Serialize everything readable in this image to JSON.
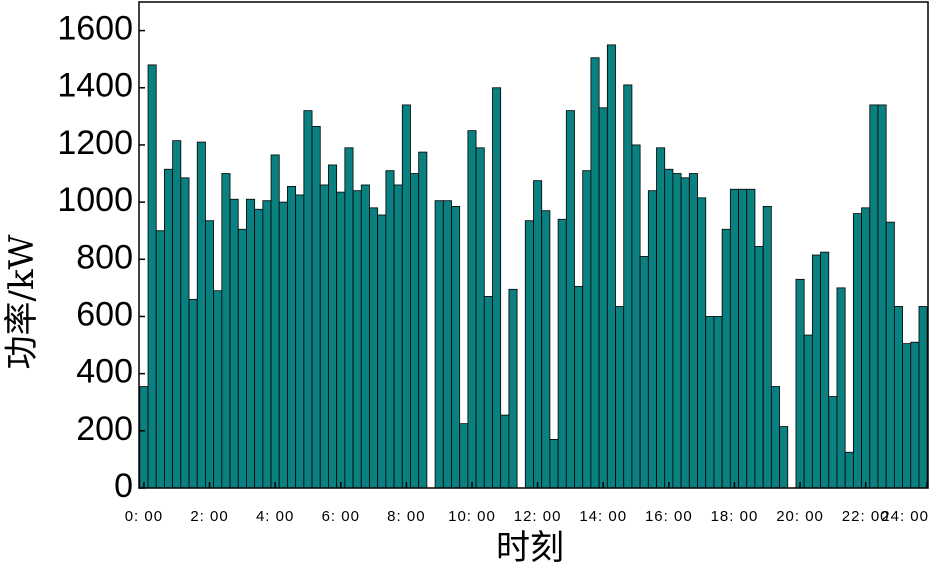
{
  "chart_data": {
    "type": "bar",
    "ylabel": "功率/kW",
    "xlabel": "时刻",
    "x": [
      0,
      0.25,
      0.5,
      0.75,
      1,
      1.25,
      1.5,
      1.75,
      2,
      2.25,
      2.5,
      2.75,
      3,
      3.25,
      3.5,
      3.75,
      4,
      4.25,
      4.5,
      4.75,
      5,
      5.25,
      5.5,
      5.75,
      6,
      6.25,
      6.5,
      6.75,
      7,
      7.25,
      7.5,
      7.75,
      8,
      8.25,
      8.5,
      8.75,
      9,
      9.25,
      9.5,
      9.75,
      10,
      10.25,
      10.5,
      10.75,
      11,
      11.25,
      11.5,
      11.75,
      12,
      12.25,
      12.5,
      12.75,
      13,
      13.25,
      13.5,
      13.75,
      14,
      14.25,
      14.5,
      14.75,
      15,
      15.25,
      15.5,
      15.75,
      16,
      16.25,
      16.5,
      16.75,
      17,
      17.25,
      17.5,
      17.75,
      18,
      18.25,
      18.5,
      18.75,
      19,
      19.25,
      19.5,
      19.75,
      20,
      20.25,
      20.5,
      20.75,
      21,
      21.25,
      21.5,
      21.75,
      22,
      22.25,
      22.5,
      22.75,
      23,
      23.25,
      23.5,
      23.75
    ],
    "values": [
      355,
      1480,
      900,
      1115,
      1215,
      1085,
      660,
      1210,
      935,
      690,
      1100,
      1010,
      905,
      1010,
      975,
      1005,
      1165,
      1000,
      1055,
      1025,
      1320,
      1265,
      1060,
      1130,
      1035,
      1190,
      1040,
      1060,
      980,
      955,
      1110,
      1060,
      1340,
      1100,
      1175,
      0,
      1005,
      1005,
      985,
      225,
      1250,
      1190,
      670,
      1400,
      255,
      695,
      0,
      935,
      1075,
      970,
      170,
      940,
      1320,
      705,
      1110,
      1505,
      1330,
      1550,
      635,
      1410,
      1200,
      810,
      1040,
      1190,
      1115,
      1100,
      1085,
      1100,
      1015,
      600,
      600,
      905,
      1045,
      1045,
      1045,
      845,
      985,
      355,
      215,
      0,
      730,
      535,
      815,
      825,
      320,
      700,
      125,
      960,
      980,
      1340,
      1340,
      930,
      635,
      505,
      510,
      635
    ],
    "color": "#0a8080",
    "ylim": [
      0,
      1700
    ],
    "yticks": [
      0,
      200,
      400,
      600,
      800,
      1000,
      1200,
      1400,
      1600
    ],
    "xlim": [
      -0.15,
      23.9
    ],
    "xticks": [
      {
        "value": 0,
        "label": "0: 00"
      },
      {
        "value": 2,
        "label": "2: 00"
      },
      {
        "value": 4,
        "label": "4: 00"
      },
      {
        "value": 6,
        "label": "6: 00"
      },
      {
        "value": 8,
        "label": "8: 00"
      },
      {
        "value": 10,
        "label": "10: 00"
      },
      {
        "value": 12,
        "label": "12: 00"
      },
      {
        "value": 14,
        "label": "14: 00"
      },
      {
        "value": 16,
        "label": "16: 00"
      },
      {
        "value": 18,
        "label": "18: 00"
      },
      {
        "value": 20,
        "label": "20: 00"
      },
      {
        "value": 22,
        "label": "22: 00"
      },
      {
        "value": 24,
        "label": "24: 00"
      }
    ]
  }
}
